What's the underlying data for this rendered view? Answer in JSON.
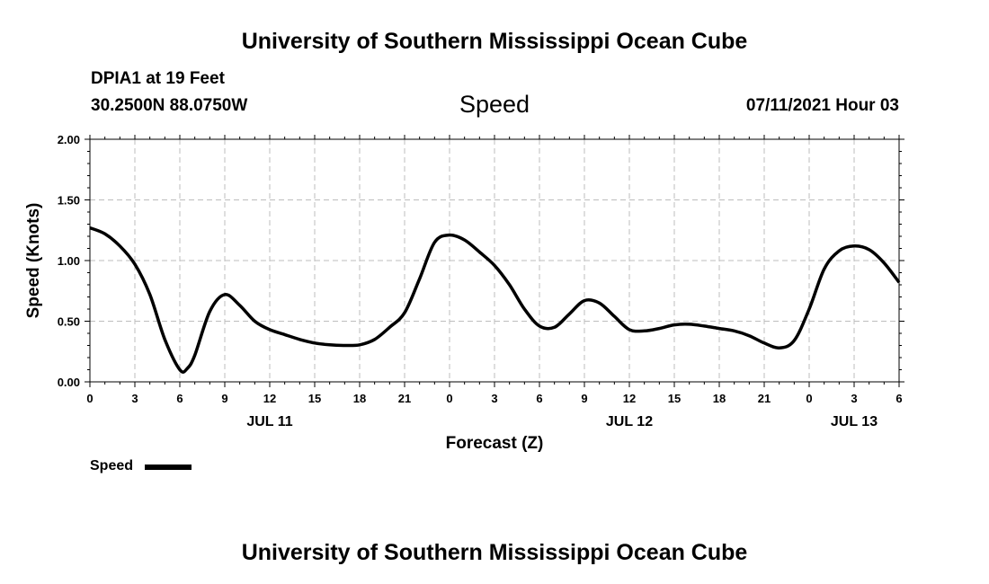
{
  "header": {
    "title_top": "University of Southern Mississippi Ocean Cube",
    "station": "DPIA1 at 19 Feet",
    "coords": "30.2500N  88.0750W",
    "chart_title": "Speed",
    "datetime": "07/11/2021 Hour 03",
    "title_bottom": "University of Southern Mississippi Ocean Cube"
  },
  "chart_data": {
    "type": "line",
    "title": "Speed",
    "xlabel": "Forecast (Z)",
    "ylabel": "Speed (Knots)",
    "xlim": [
      0,
      54
    ],
    "ylim": [
      0,
      2
    ],
    "grid": true,
    "x_unit": "hours",
    "x_ticks": [
      0,
      3,
      6,
      9,
      12,
      15,
      18,
      21,
      24,
      27,
      30,
      33,
      36,
      39,
      42,
      45,
      48,
      51,
      54
    ],
    "x_tick_labels": [
      "0",
      "3",
      "6",
      "9",
      "12",
      "15",
      "18",
      "21",
      "0",
      "3",
      "6",
      "9",
      "12",
      "15",
      "18",
      "21",
      "0",
      "3",
      "6"
    ],
    "date_labels": [
      {
        "x": 12,
        "label": "JUL 11"
      },
      {
        "x": 36,
        "label": "JUL 12"
      },
      {
        "x": 51,
        "label": "JUL 13"
      }
    ],
    "y_ticks": [
      0,
      0.5,
      1,
      1.5,
      2
    ],
    "y_tick_labels": [
      "0.00",
      "0.50",
      "1.00",
      "1.50",
      "2.00"
    ],
    "legend": {
      "placement": "bottom-left",
      "label": "Speed"
    },
    "series": [
      {
        "name": "Speed",
        "color": "#000000",
        "x": [
          0,
          1,
          2,
          3,
          4,
          5,
          6,
          6.5,
          7,
          8,
          9,
          10,
          11,
          12,
          13,
          14,
          15,
          16,
          17,
          18,
          19,
          20,
          21,
          22,
          23,
          24,
          25,
          26,
          27,
          28,
          29,
          30,
          31,
          32,
          33,
          34,
          35,
          36,
          37,
          38,
          39,
          40,
          41,
          42,
          43,
          44,
          45,
          46,
          47,
          48,
          49,
          50,
          51,
          52,
          53,
          54
        ],
        "y": [
          1.27,
          1.22,
          1.12,
          0.97,
          0.72,
          0.35,
          0.1,
          0.11,
          0.22,
          0.58,
          0.72,
          0.63,
          0.5,
          0.43,
          0.39,
          0.35,
          0.32,
          0.305,
          0.3,
          0.305,
          0.35,
          0.45,
          0.57,
          0.85,
          1.15,
          1.21,
          1.17,
          1.07,
          0.96,
          0.8,
          0.6,
          0.46,
          0.45,
          0.56,
          0.67,
          0.65,
          0.54,
          0.43,
          0.42,
          0.44,
          0.47,
          0.475,
          0.46,
          0.44,
          0.42,
          0.38,
          0.32,
          0.28,
          0.34,
          0.6,
          0.93,
          1.08,
          1.12,
          1.09,
          0.98,
          0.82
        ]
      }
    ]
  }
}
